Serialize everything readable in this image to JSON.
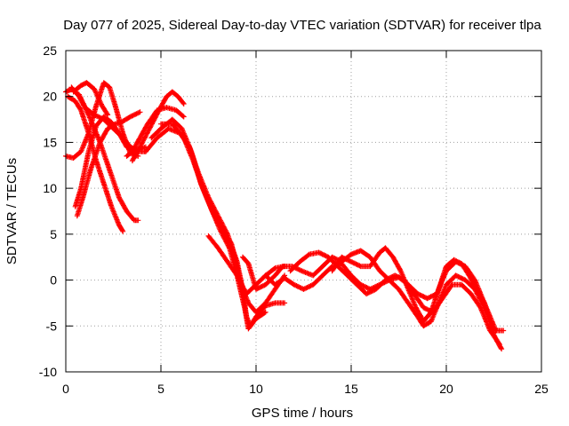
{
  "chart_data": {
    "type": "scatter",
    "title": "Day 077 of 2025, Sidereal Day-to-day VTEC variation (SDTVAR) for receiver tlpa",
    "xlabel": "GPS time / hours",
    "ylabel": "SDTVAR / TECUs",
    "xlim": [
      0,
      25
    ],
    "ylim": [
      -10,
      25
    ],
    "xticks": [
      0,
      5,
      10,
      15,
      20,
      25
    ],
    "yticks": [
      -10,
      -5,
      0,
      5,
      10,
      15,
      20,
      25
    ],
    "grid": true,
    "marker": "plus",
    "color": "#ff0000",
    "series": [
      {
        "name": "s1",
        "points": [
          [
            0.0,
            20.5
          ],
          [
            0.3,
            20.8
          ],
          [
            0.7,
            20.2
          ],
          [
            1.2,
            18.0
          ],
          [
            1.8,
            15.0
          ],
          [
            2.3,
            12.0
          ],
          [
            2.8,
            9.0
          ],
          [
            3.2,
            7.5
          ],
          [
            3.6,
            6.5
          ],
          [
            3.8,
            6.5
          ]
        ]
      },
      {
        "name": "s2",
        "points": [
          [
            0.1,
            20.0
          ],
          [
            0.5,
            19.5
          ],
          [
            0.8,
            18.5
          ],
          [
            1.2,
            16.0
          ],
          [
            1.6,
            13.0
          ],
          [
            2.0,
            10.5
          ],
          [
            2.4,
            8.0
          ],
          [
            2.8,
            6.0
          ],
          [
            3.0,
            5.3
          ]
        ]
      },
      {
        "name": "s3",
        "points": [
          [
            0.0,
            13.5
          ],
          [
            0.4,
            13.3
          ],
          [
            0.8,
            14.0
          ],
          [
            1.2,
            16.0
          ],
          [
            1.6,
            19.0
          ],
          [
            2.0,
            21.5
          ],
          [
            2.3,
            21.0
          ],
          [
            2.6,
            19.0
          ],
          [
            3.0,
            16.0
          ],
          [
            3.4,
            13.8
          ],
          [
            3.8,
            13.5
          ]
        ]
      },
      {
        "name": "s4",
        "points": [
          [
            0.5,
            8.0
          ],
          [
            0.8,
            10.0
          ],
          [
            1.2,
            14.0
          ],
          [
            1.6,
            16.8
          ],
          [
            2.0,
            17.8
          ],
          [
            2.4,
            17.2
          ],
          [
            2.8,
            16.0
          ],
          [
            3.2,
            14.5
          ],
          [
            3.6,
            14.0
          ],
          [
            4.2,
            14.5
          ]
        ]
      },
      {
        "name": "s5",
        "points": [
          [
            0.6,
            7.0
          ],
          [
            0.9,
            9.0
          ],
          [
            1.3,
            12.0
          ],
          [
            1.8,
            15.0
          ],
          [
            2.2,
            16.5
          ],
          [
            2.6,
            17.0
          ],
          [
            3.0,
            17.3
          ],
          [
            3.4,
            17.8
          ],
          [
            3.9,
            18.3
          ]
        ]
      },
      {
        "name": "s6",
        "points": [
          [
            0.4,
            20.5
          ],
          [
            0.8,
            21.2
          ],
          [
            1.1,
            21.5
          ],
          [
            1.5,
            20.8
          ],
          [
            1.9,
            19.0
          ],
          [
            2.2,
            18.0
          ]
        ]
      },
      {
        "name": "s7",
        "points": [
          [
            0.3,
            21.0
          ],
          [
            0.7,
            20.0
          ],
          [
            1.0,
            18.8
          ],
          [
            1.5,
            18.0
          ],
          [
            2.0,
            17.5
          ],
          [
            2.5,
            16.5
          ],
          [
            3.0,
            15.5
          ],
          [
            3.4,
            14.5
          ],
          [
            3.8,
            14.0
          ],
          [
            4.2,
            14.0
          ]
        ]
      },
      {
        "name": "s8",
        "points": [
          [
            3.2,
            13.5
          ],
          [
            3.5,
            14.0
          ],
          [
            3.9,
            15.5
          ],
          [
            4.3,
            17.0
          ],
          [
            4.8,
            18.5
          ],
          [
            5.3,
            18.8
          ],
          [
            5.8,
            18.5
          ],
          [
            6.2,
            17.8
          ]
        ]
      },
      {
        "name": "s9",
        "points": [
          [
            3.5,
            13.0
          ],
          [
            3.9,
            14.5
          ],
          [
            4.4,
            16.5
          ],
          [
            4.9,
            18.5
          ],
          [
            5.3,
            20.0
          ],
          [
            5.6,
            20.5
          ],
          [
            5.9,
            20.0
          ],
          [
            6.2,
            19.2
          ]
        ]
      },
      {
        "name": "s10",
        "points": [
          [
            4.2,
            14.0
          ],
          [
            4.8,
            15.5
          ],
          [
            5.4,
            16.5
          ],
          [
            6.0,
            16.0
          ],
          [
            6.5,
            14.5
          ],
          [
            7.0,
            11.5
          ],
          [
            7.5,
            9.0
          ],
          [
            8.0,
            7.0
          ],
          [
            8.5,
            5.0
          ],
          [
            9.0,
            2.0
          ],
          [
            9.3,
            -1.0
          ],
          [
            9.5,
            -4.0
          ],
          [
            9.7,
            -5.0
          ],
          [
            10.0,
            -4.0
          ],
          [
            10.5,
            -2.8
          ],
          [
            11.0,
            -2.5
          ],
          [
            11.5,
            -2.5
          ]
        ]
      },
      {
        "name": "s11",
        "points": [
          [
            4.5,
            15.5
          ],
          [
            5.0,
            16.5
          ],
          [
            5.6,
            17.5
          ],
          [
            6.1,
            16.5
          ],
          [
            6.6,
            14.0
          ],
          [
            7.1,
            10.5
          ],
          [
            7.6,
            8.0
          ],
          [
            8.1,
            5.5
          ],
          [
            8.6,
            3.5
          ],
          [
            9.0,
            0.5
          ],
          [
            9.4,
            -3.0
          ],
          [
            9.6,
            -5.3
          ],
          [
            10.0,
            -4.2
          ],
          [
            10.5,
            -3.5
          ]
        ]
      },
      {
        "name": "s12",
        "points": [
          [
            5.0,
            17.0
          ],
          [
            5.6,
            17.0
          ],
          [
            6.2,
            15.5
          ],
          [
            6.7,
            13.0
          ],
          [
            7.2,
            10.0
          ],
          [
            7.7,
            7.5
          ],
          [
            8.2,
            5.5
          ],
          [
            8.7,
            4.0
          ],
          [
            9.0,
            1.5
          ],
          [
            9.3,
            -1.0
          ],
          [
            9.6,
            -2.5
          ],
          [
            10.0,
            -3.5
          ],
          [
            10.5,
            -2.5
          ],
          [
            11.0,
            -1.0
          ],
          [
            11.5,
            0.5
          ]
        ]
      },
      {
        "name": "s13",
        "points": [
          [
            7.5,
            4.8
          ],
          [
            8.0,
            3.5
          ],
          [
            8.5,
            2.0
          ],
          [
            9.0,
            0.5
          ],
          [
            9.5,
            -1.5
          ],
          [
            10.0,
            -0.5
          ],
          [
            10.5,
            0.5
          ],
          [
            11.0,
            1.3
          ],
          [
            11.5,
            1.5
          ]
        ]
      },
      {
        "name": "s14",
        "points": [
          [
            9.3,
            2.5
          ],
          [
            9.6,
            1.8
          ],
          [
            10.0,
            -1.0
          ],
          [
            10.5,
            -0.5
          ],
          [
            11.0,
            0.5
          ],
          [
            11.4,
            1.5
          ],
          [
            11.9,
            1.5
          ],
          [
            12.4,
            1.0
          ],
          [
            13.0,
            0.5
          ],
          [
            13.5,
            1.5
          ],
          [
            14.0,
            2.5
          ],
          [
            14.5,
            2.0
          ],
          [
            15.0,
            2.8
          ],
          [
            15.5,
            3.2
          ],
          [
            16.0,
            2.5
          ],
          [
            16.5,
            1.0
          ],
          [
            17.0,
            0.0
          ],
          [
            17.5,
            -1.0
          ],
          [
            18.0,
            -2.5
          ],
          [
            18.5,
            -4.0
          ],
          [
            18.8,
            -5.0
          ],
          [
            19.2,
            -4.5
          ],
          [
            19.6,
            -2.5
          ],
          [
            20.0,
            -0.5
          ],
          [
            20.5,
            0.5
          ],
          [
            21.0,
            0.0
          ],
          [
            21.5,
            -1.0
          ],
          [
            22.0,
            -3.0
          ],
          [
            22.5,
            -5.5
          ],
          [
            23.0,
            -5.5
          ]
        ]
      },
      {
        "name": "s15",
        "points": [
          [
            10.5,
            0.5
          ],
          [
            11.0,
            -0.5
          ],
          [
            11.5,
            0.2
          ],
          [
            12.0,
            -0.5
          ],
          [
            12.5,
            -1.0
          ],
          [
            13.0,
            -0.5
          ],
          [
            13.5,
            0.5
          ],
          [
            14.0,
            1.5
          ],
          [
            14.5,
            1.8
          ],
          [
            15.0,
            0.5
          ],
          [
            15.5,
            -0.5
          ],
          [
            16.0,
            -1.0
          ],
          [
            16.5,
            -0.5
          ],
          [
            17.0,
            0.0
          ],
          [
            17.5,
            0.3
          ],
          [
            18.0,
            -0.5
          ],
          [
            18.5,
            -1.5
          ],
          [
            19.0,
            -2.0
          ],
          [
            19.5,
            -1.5
          ],
          [
            20.0,
            1.0
          ],
          [
            20.5,
            2.0
          ],
          [
            21.0,
            1.5
          ],
          [
            21.5,
            0.0
          ],
          [
            22.0,
            -2.5
          ],
          [
            22.5,
            -6.0
          ],
          [
            22.9,
            -7.5
          ]
        ]
      },
      {
        "name": "s16",
        "points": [
          [
            11.8,
            1.0
          ],
          [
            12.3,
            2.0
          ],
          [
            12.8,
            2.8
          ],
          [
            13.3,
            3.0
          ],
          [
            13.8,
            2.5
          ],
          [
            14.3,
            1.5
          ],
          [
            14.8,
            0.5
          ],
          [
            15.3,
            -0.5
          ],
          [
            15.8,
            -1.5
          ],
          [
            16.3,
            -1.0
          ],
          [
            16.8,
            0.0
          ],
          [
            17.3,
            0.5
          ],
          [
            17.8,
            0.0
          ],
          [
            18.3,
            -1.5
          ],
          [
            18.8,
            -3.0
          ],
          [
            19.3,
            -3.5
          ],
          [
            19.8,
            -2.0
          ],
          [
            20.3,
            -0.5
          ],
          [
            20.8,
            -0.5
          ],
          [
            21.3,
            -1.5
          ],
          [
            21.8,
            -3.0
          ],
          [
            22.3,
            -5.5
          ],
          [
            22.8,
            -7.0
          ]
        ]
      },
      {
        "name": "s17",
        "points": [
          [
            14.0,
            1.0
          ],
          [
            14.5,
            2.5
          ],
          [
            15.0,
            2.0
          ],
          [
            15.5,
            1.5
          ],
          [
            16.0,
            1.5
          ],
          [
            16.5,
            3.0
          ],
          [
            16.8,
            3.5
          ],
          [
            17.2,
            2.5
          ],
          [
            17.6,
            1.0
          ],
          [
            18.0,
            -1.0
          ],
          [
            18.4,
            -3.0
          ],
          [
            18.8,
            -4.5
          ],
          [
            19.2,
            -3.5
          ],
          [
            19.6,
            -1.0
          ],
          [
            20.0,
            1.5
          ],
          [
            20.4,
            2.2
          ],
          [
            20.8,
            1.8
          ],
          [
            21.2,
            0.5
          ],
          [
            21.6,
            -1.0
          ],
          [
            22.0,
            -2.5
          ],
          [
            22.3,
            -4.0
          ],
          [
            22.6,
            -5.5
          ]
        ]
      }
    ]
  }
}
